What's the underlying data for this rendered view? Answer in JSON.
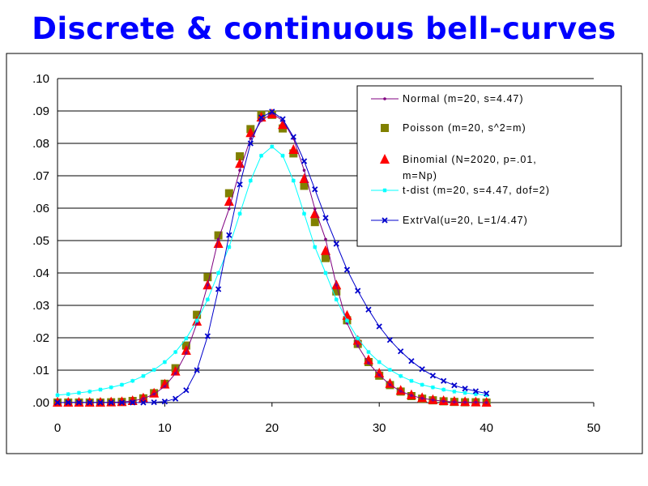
{
  "title": "Discrete & continuous bell-curves",
  "chart_data": {
    "type": "line",
    "xlim": [
      0,
      50
    ],
    "ylim": [
      0,
      0.1
    ],
    "x_ticks": [
      "0",
      "10",
      "20",
      "30",
      "40",
      "50"
    ],
    "y_ticks": [
      ".00",
      ".01",
      ".02",
      ".03",
      ".04",
      ".05",
      ".06",
      ".07",
      ".08",
      ".09",
      ".10"
    ],
    "grid": "horizontal",
    "legend_position": "top-right",
    "x": [
      0,
      1,
      2,
      3,
      4,
      5,
      6,
      7,
      8,
      9,
      10,
      11,
      12,
      13,
      14,
      15,
      16,
      17,
      18,
      19,
      20,
      21,
      22,
      23,
      24,
      25,
      26,
      27,
      28,
      29,
      30,
      31,
      32,
      33,
      34,
      35,
      36,
      37,
      38,
      39,
      40
    ],
    "series": [
      {
        "name": "Normal (m=20, s=4.47)",
        "color": "#800080",
        "marker": "dot",
        "values": [
          0.0,
          0.0001,
          0.0001,
          0.0001,
          0.0001,
          0.0001,
          0.0002,
          0.0005,
          0.0012,
          0.0026,
          0.005,
          0.009,
          0.0153,
          0.0245,
          0.0363,
          0.0504,
          0.0598,
          0.0717,
          0.0815,
          0.087,
          0.0893,
          0.087,
          0.0815,
          0.0717,
          0.0598,
          0.0504,
          0.0363,
          0.0245,
          0.0175,
          0.0122,
          0.0085,
          0.0055,
          0.0035,
          0.0022,
          0.0013,
          0.0008,
          0.0004,
          0.0002,
          0.0001,
          0.0001,
          0.0
        ]
      },
      {
        "name": "Poisson (m=20, s^2=m)",
        "color": "#808000",
        "marker": "square",
        "values": [
          0.0,
          0.0,
          0.0,
          0.0,
          0.0,
          0.0001,
          0.0002,
          0.0005,
          0.0013,
          0.0029,
          0.0058,
          0.0106,
          0.0176,
          0.0271,
          0.0387,
          0.0516,
          0.0646,
          0.076,
          0.0844,
          0.0888,
          0.0888,
          0.0846,
          0.0769,
          0.0669,
          0.0557,
          0.0446,
          0.0343,
          0.0254,
          0.0181,
          0.0125,
          0.0083,
          0.0054,
          0.0034,
          0.002,
          0.0012,
          0.0007,
          0.0004,
          0.0002,
          0.0001,
          0.0001,
          0.0
        ]
      },
      {
        "name": "Binomial (N=2020, p=.01, m=Np)",
        "color": "#ff0000",
        "marker": "triangle",
        "values": [
          0.0,
          0.0,
          0.0,
          0.0,
          0.0,
          0.0001,
          0.0002,
          0.0005,
          0.0013,
          0.0028,
          0.0056,
          0.0096,
          0.016,
          0.025,
          0.0362,
          0.049,
          0.062,
          0.0737,
          0.0832,
          0.088,
          0.089,
          0.0857,
          0.078,
          0.069,
          0.0582,
          0.0468,
          0.0362,
          0.0268,
          0.0191,
          0.0131,
          0.009,
          0.0058,
          0.0037,
          0.0023,
          0.0014,
          0.0008,
          0.0005,
          0.0003,
          0.0002,
          0.0001,
          0.0
        ]
      },
      {
        "name": "t-dist (m=20, s=4.47, dof=2)",
        "color": "#00ffff",
        "marker": "star",
        "values": [
          0.0023,
          0.0026,
          0.003,
          0.0034,
          0.004,
          0.0047,
          0.0055,
          0.0067,
          0.0082,
          0.0101,
          0.0125,
          0.0156,
          0.0198,
          0.0253,
          0.0318,
          0.04,
          0.048,
          0.0583,
          0.0685,
          0.0762,
          0.079,
          0.0762,
          0.0685,
          0.0583,
          0.048,
          0.04,
          0.0318,
          0.0253,
          0.0198,
          0.0156,
          0.0125,
          0.0101,
          0.0082,
          0.0067,
          0.0055,
          0.0047,
          0.004,
          0.0034,
          0.003,
          0.0026,
          0.0023
        ]
      },
      {
        "name": "ExtrVal(u=20, L=1/4.47)",
        "color": "#0000cc",
        "marker": "x",
        "values": [
          0.0,
          0.0,
          0.0,
          0.0,
          0.0,
          0.0,
          0.0,
          0.0,
          0.0,
          0.0001,
          0.0003,
          0.0012,
          0.0038,
          0.01,
          0.0205,
          0.035,
          0.0517,
          0.0673,
          0.08,
          0.088,
          0.0898,
          0.0875,
          0.082,
          0.0745,
          0.0658,
          0.057,
          0.049,
          0.041,
          0.0345,
          0.0287,
          0.0235,
          0.0193,
          0.0158,
          0.0128,
          0.0103,
          0.0083,
          0.0067,
          0.0053,
          0.0043,
          0.0035,
          0.0028
        ]
      }
    ]
  }
}
